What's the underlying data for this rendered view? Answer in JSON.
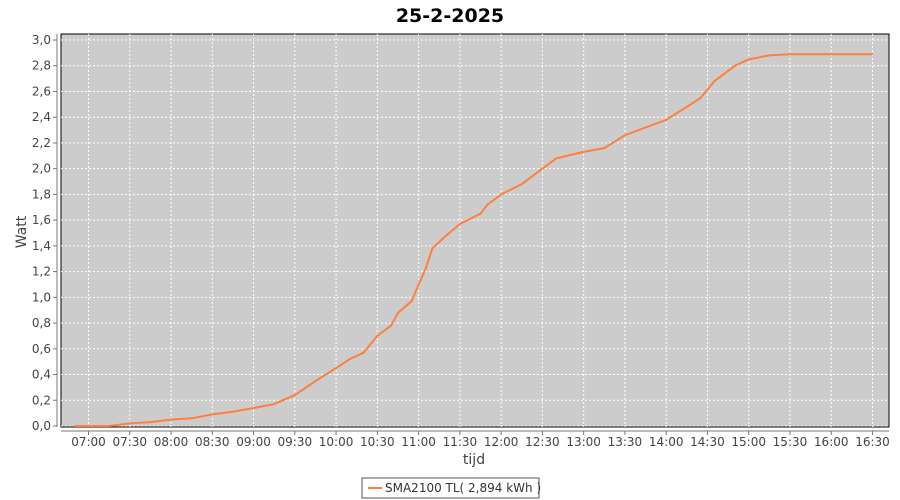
{
  "chart_data": {
    "type": "line",
    "title": "25-2-2025",
    "xlabel": "tijd",
    "ylabel": "Watt",
    "ylim": [
      0,
      3.0
    ],
    "xlim": [
      "06:40",
      "16:42"
    ],
    "yticks": [
      "0,0",
      "0,2",
      "0,4",
      "0,6",
      "0,8",
      "1,0",
      "1,2",
      "1,4",
      "1,6",
      "1,8",
      "2,0",
      "2,2",
      "2,4",
      "2,6",
      "2,8",
      "3,0"
    ],
    "xticks": [
      "07:00",
      "07:30",
      "08:00",
      "08:30",
      "09:00",
      "09:30",
      "10:00",
      "10:30",
      "11:00",
      "11:30",
      "12:00",
      "12:30",
      "13:00",
      "13:30",
      "14:00",
      "14:30",
      "15:00",
      "15:30",
      "16:00",
      "16:30"
    ],
    "grid": true,
    "legend_position": "bottom",
    "background_color": "#cccccc",
    "series": [
      {
        "name": "SMA2100 TL( 2,894 kWh )",
        "color": "#ff7f3f",
        "x": [
          "06:50",
          "07:15",
          "07:30",
          "07:45",
          "08:00",
          "08:15",
          "08:30",
          "08:45",
          "09:00",
          "09:15",
          "09:30",
          "09:45",
          "10:00",
          "10:10",
          "10:20",
          "10:30",
          "10:40",
          "10:45",
          "10:55",
          "11:00",
          "11:05",
          "11:10",
          "11:20",
          "11:30",
          "11:45",
          "11:50",
          "12:00",
          "12:15",
          "12:30",
          "12:40",
          "13:00",
          "13:15",
          "13:30",
          "13:45",
          "14:00",
          "14:15",
          "14:25",
          "14:35",
          "14:50",
          "15:00",
          "15:15",
          "15:30",
          "16:00",
          "16:30"
        ],
        "y": [
          0,
          0.0,
          0.02,
          0.03,
          0.05,
          0.06,
          0.09,
          0.11,
          0.14,
          0.17,
          0.24,
          0.35,
          0.45,
          0.52,
          0.57,
          0.7,
          0.78,
          0.88,
          0.97,
          1.1,
          1.22,
          1.38,
          1.48,
          1.57,
          1.65,
          1.72,
          1.8,
          1.88,
          2.0,
          2.08,
          2.13,
          2.16,
          2.26,
          2.32,
          2.38,
          2.48,
          2.55,
          2.68,
          2.8,
          2.85,
          2.88,
          2.89,
          2.89,
          2.89
        ]
      }
    ]
  }
}
